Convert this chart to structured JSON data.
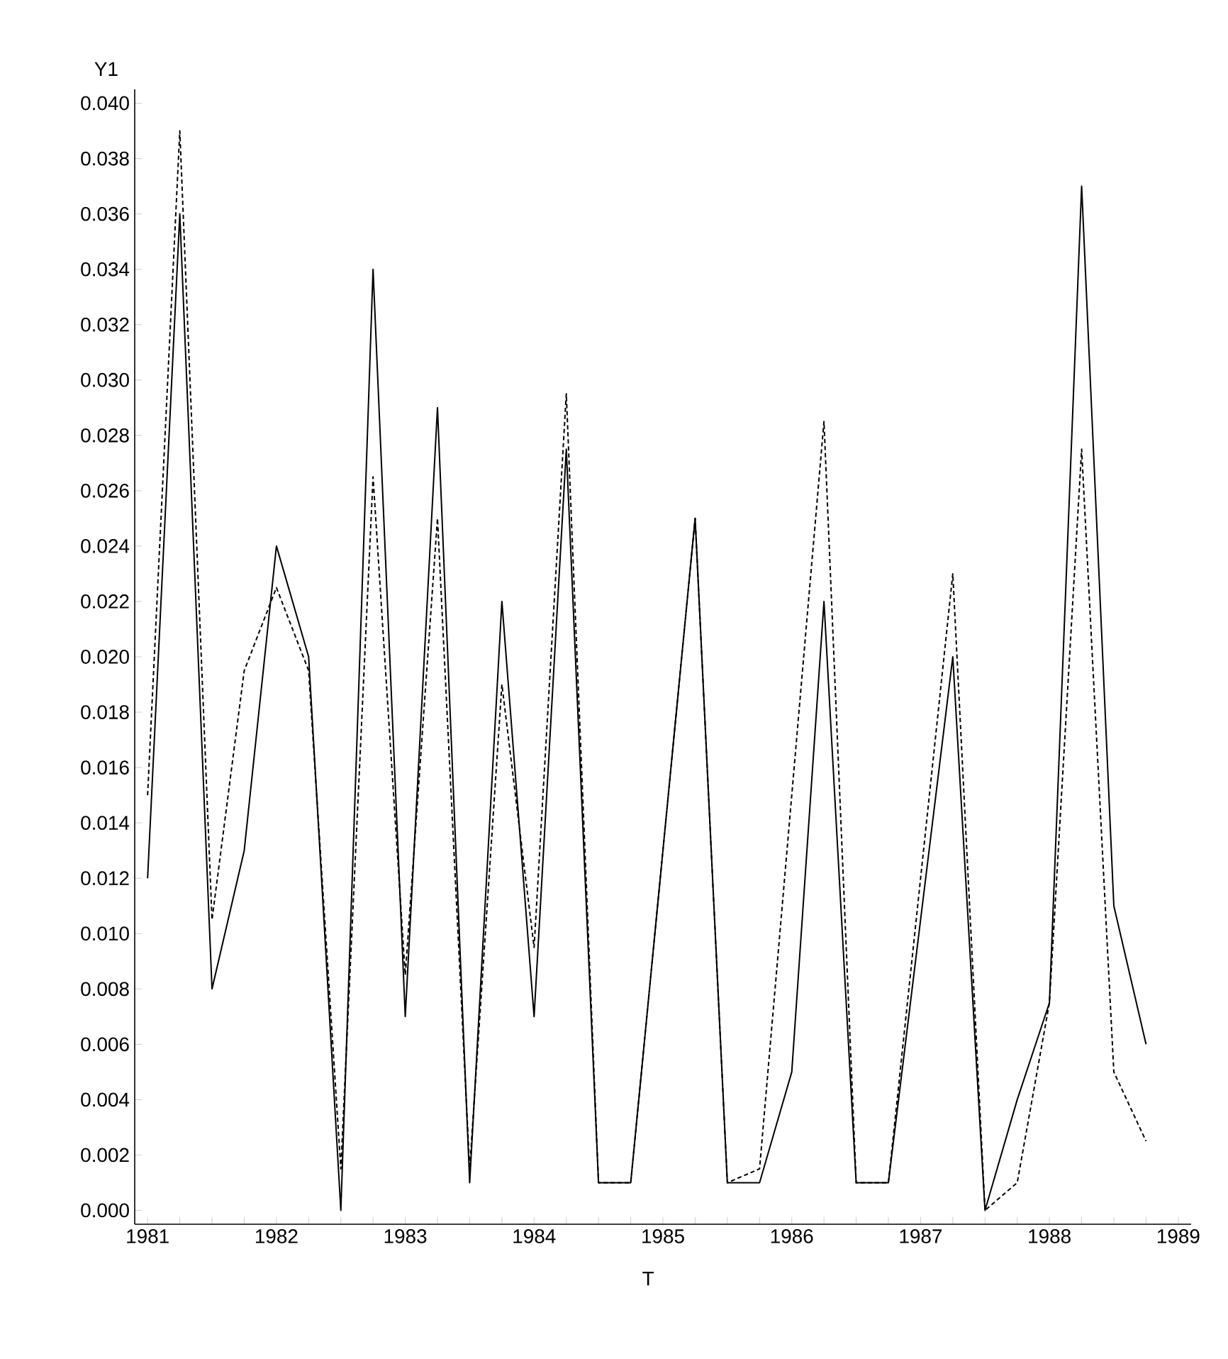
{
  "chart_data": {
    "type": "line",
    "xlabel": "T",
    "ylabel": "Y1",
    "x": [
      1981.0,
      1981.25,
      1981.5,
      1981.75,
      1982.0,
      1982.25,
      1982.5,
      1982.75,
      1983.0,
      1983.25,
      1983.5,
      1983.75,
      1984.0,
      1984.25,
      1984.5,
      1984.75,
      1985.0,
      1985.25,
      1985.5,
      1985.75,
      1986.0,
      1986.25,
      1986.5,
      1986.75,
      1987.0,
      1987.25,
      1987.5,
      1987.75,
      1988.0,
      1988.25,
      1988.5,
      1988.75
    ],
    "xlim": [
      1980.9,
      1989.1
    ],
    "xticks": [
      1981,
      {
        "value": 1981.25,
        "label": null
      },
      {
        "value": 1981.5,
        "label": null
      },
      {
        "value": 1981.75,
        "label": null
      },
      1982,
      {
        "value": 1982.25,
        "label": null
      },
      {
        "value": 1982.5,
        "label": null
      },
      {
        "value": 1982.75,
        "label": null
      },
      1983,
      {
        "value": 1983.25,
        "label": null
      },
      {
        "value": 1983.5,
        "label": null
      },
      {
        "value": 1983.75,
        "label": null
      },
      1984,
      {
        "value": 1984.25,
        "label": null
      },
      {
        "value": 1984.5,
        "label": null
      },
      {
        "value": 1984.75,
        "label": null
      },
      1985,
      {
        "value": 1985.25,
        "label": null
      },
      {
        "value": 1985.5,
        "label": null
      },
      {
        "value": 1985.75,
        "label": null
      },
      1986,
      {
        "value": 1986.25,
        "label": null
      },
      {
        "value": 1986.5,
        "label": null
      },
      {
        "value": 1986.75,
        "label": null
      },
      1987,
      {
        "value": 1987.25,
        "label": null
      },
      {
        "value": 1987.5,
        "label": null
      },
      {
        "value": 1987.75,
        "label": null
      },
      1988,
      {
        "value": 1988.25,
        "label": null
      },
      {
        "value": 1988.5,
        "label": null
      },
      {
        "value": 1988.75,
        "label": null
      },
      1989
    ],
    "ylim": [
      -0.0005,
      0.0405
    ],
    "yticks": [
      {
        "value": 0.0,
        "label": "0.000"
      },
      {
        "value": 0.002,
        "label": "0.002"
      },
      {
        "value": 0.004,
        "label": "0.004"
      },
      {
        "value": 0.006,
        "label": "0.006"
      },
      {
        "value": 0.008,
        "label": "0.008"
      },
      {
        "value": 0.01,
        "label": "0.010"
      },
      {
        "value": 0.012,
        "label": "0.012"
      },
      {
        "value": 0.014,
        "label": "0.014"
      },
      {
        "value": 0.016,
        "label": "0.016"
      },
      {
        "value": 0.018,
        "label": "0.018"
      },
      {
        "value": 0.02,
        "label": "0.020"
      },
      {
        "value": 0.022,
        "label": "0.022"
      },
      {
        "value": 0.024,
        "label": "0.024"
      },
      {
        "value": 0.026,
        "label": "0.026"
      },
      {
        "value": 0.028,
        "label": "0.028"
      },
      {
        "value": 0.03,
        "label": "0.030"
      },
      {
        "value": 0.032,
        "label": "0.032"
      },
      {
        "value": 0.034,
        "label": "0.034"
      },
      {
        "value": 0.036,
        "label": "0.036"
      },
      {
        "value": 0.038,
        "label": "0.038"
      },
      {
        "value": 0.04,
        "label": "0.040"
      }
    ],
    "series": [
      {
        "color": "#000000",
        "line_style": "solid",
        "values": [
          0.012,
          0.036,
          0.008,
          0.013,
          0.024,
          0.02,
          0.0,
          0.034,
          0.007,
          0.029,
          0.001,
          0.022,
          0.007,
          0.0275,
          0.001,
          0.001,
          0.013,
          0.025,
          0.001,
          0.001,
          0.005,
          0.022,
          0.001,
          0.001,
          0.0105,
          0.02,
          0.0,
          0.004,
          0.0075,
          0.037,
          0.011,
          0.006
        ]
      },
      {
        "color": "#000000",
        "line_style": "dashed",
        "values": [
          0.015,
          0.039,
          0.0105,
          0.0195,
          0.0225,
          0.0195,
          0.0015,
          0.0265,
          0.0085,
          0.025,
          0.0015,
          0.019,
          0.0095,
          0.0295,
          0.001,
          0.001,
          0.013,
          0.025,
          0.001,
          0.0015,
          0.015,
          0.0285,
          0.001,
          0.001,
          0.012,
          0.023,
          0.0,
          0.001,
          0.0075,
          0.0275,
          0.005,
          0.0025
        ]
      }
    ]
  }
}
